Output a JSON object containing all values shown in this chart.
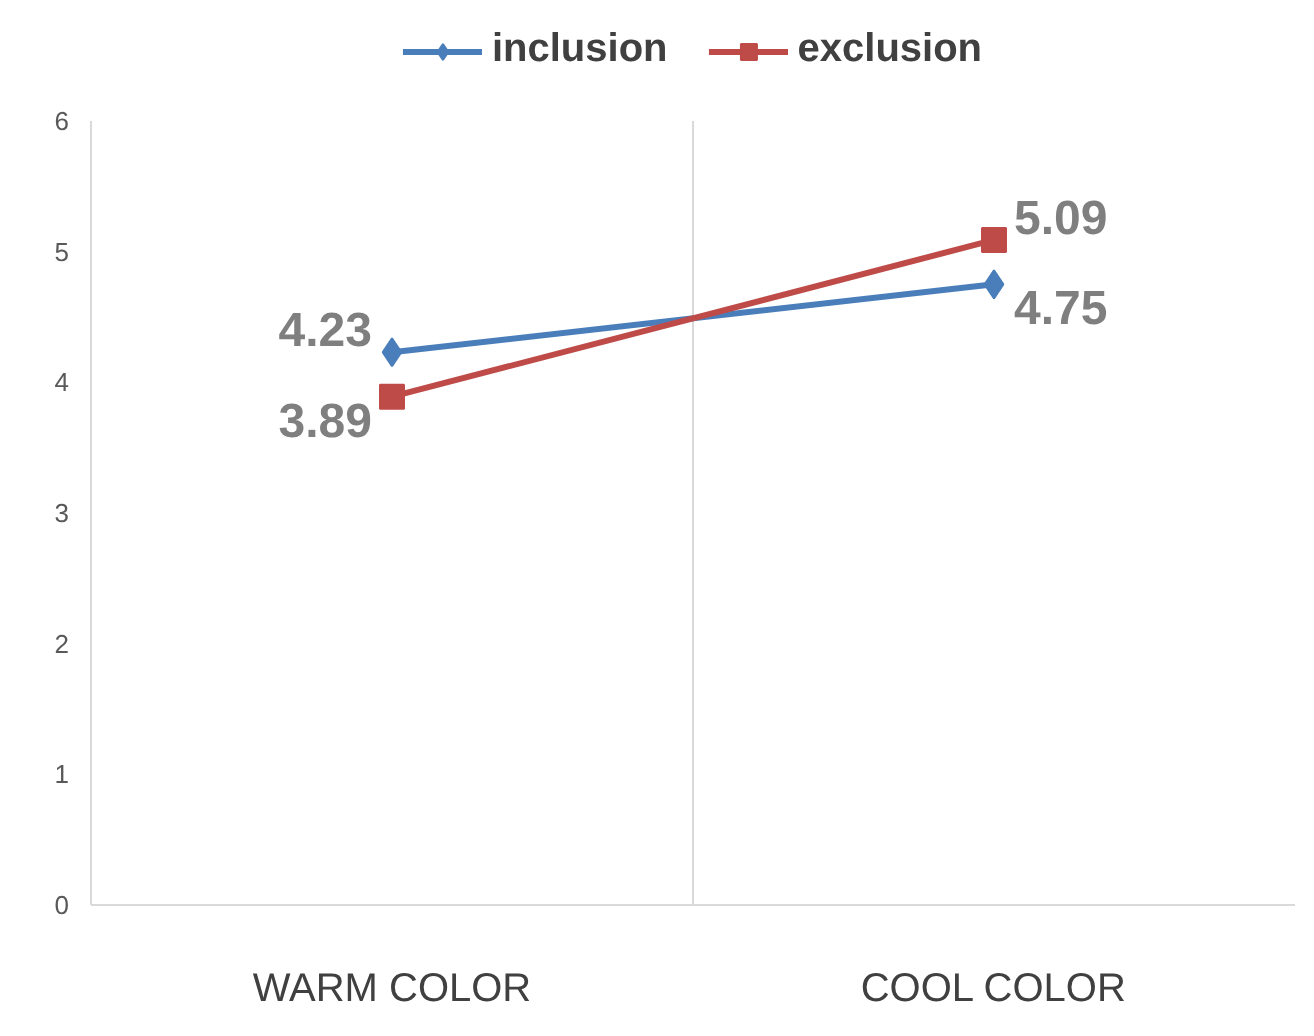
{
  "chart_data": {
    "type": "line",
    "categories": [
      "WARM COLOR",
      "COOL COLOR"
    ],
    "series": [
      {
        "name": "inclusion",
        "color": "#4a7ebb",
        "values": [
          4.23,
          4.75
        ],
        "marker": "diamond"
      },
      {
        "name": "exclusion",
        "color": "#be4b48",
        "values": [
          3.89,
          5.09
        ],
        "marker": "square"
      }
    ],
    "ylim": [
      0,
      6
    ],
    "yticks": [
      0,
      1,
      2,
      3,
      4,
      5,
      6
    ],
    "grid": "x",
    "legend": "top",
    "data_labels": true
  }
}
